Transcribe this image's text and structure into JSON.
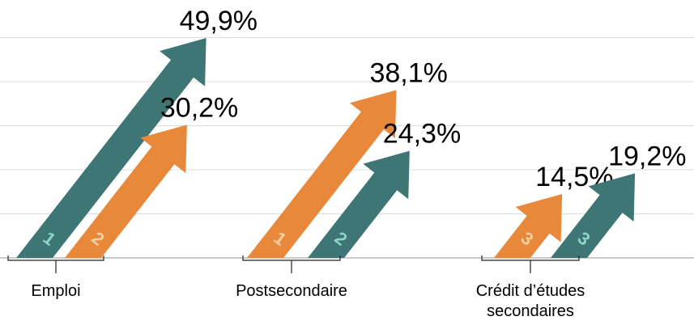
{
  "chart_data": {
    "type": "arrow",
    "ylim": [
      0,
      50
    ],
    "yticks": [
      0,
      10,
      20,
      30,
      40,
      50
    ],
    "grid": true,
    "groups": [
      {
        "label": [
          "Emploi"
        ],
        "arrows": [
          {
            "color": "#3d7674",
            "rank_color": "#8fd3cd",
            "value": 49.9,
            "value_label": "49,9%",
            "rank": "1"
          },
          {
            "color": "#e8883a",
            "rank_color": "#f7cfa3",
            "value": 30.2,
            "value_label": "30,2%",
            "rank": "2"
          }
        ]
      },
      {
        "label": [
          "Postsecondaire"
        ],
        "arrows": [
          {
            "color": "#e8883a",
            "rank_color": "#f7cfa3",
            "value": 38.1,
            "value_label": "38,1%",
            "rank": "1"
          },
          {
            "color": "#3d7674",
            "rank_color": "#8fd3cd",
            "value": 24.3,
            "value_label": "24,3%",
            "rank": "2"
          }
        ]
      },
      {
        "label": [
          "Crédit d’études",
          "secondaires"
        ],
        "arrows": [
          {
            "color": "#e8883a",
            "rank_color": "#f7cfa3",
            "value": 14.5,
            "value_label": "14,5%",
            "rank": "3"
          },
          {
            "color": "#3d7674",
            "rank_color": "#8fd3cd",
            "value": 19.2,
            "value_label": "19,2%",
            "rank": "3"
          }
        ]
      }
    ]
  }
}
